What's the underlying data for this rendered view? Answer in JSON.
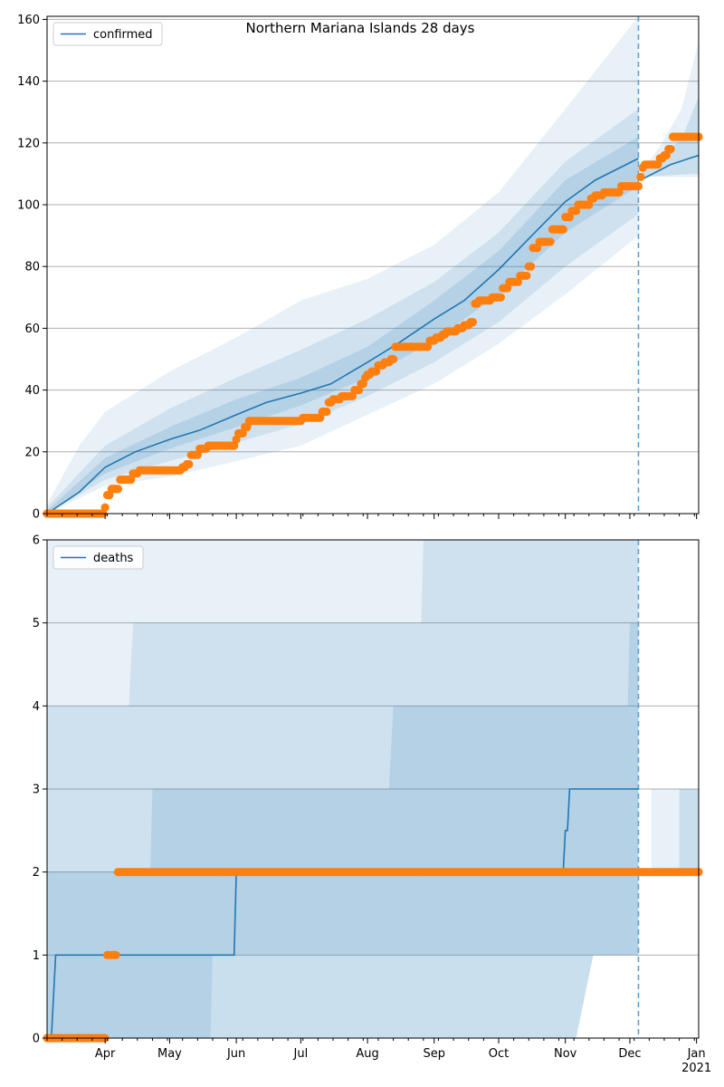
{
  "title": "Northern Mariana Islands 28 days",
  "colors": {
    "model_line": "#1f77b4",
    "observed": "#ff7f0e",
    "band": "#1f77b4",
    "grid": "#b0b0b0",
    "forecast_start": "#5b9fd4"
  },
  "x_axis": {
    "range": [
      "2020-03-05",
      "2021-01-02"
    ],
    "month_labels": [
      {
        "date": "2020-04-01",
        "label": "Apr"
      },
      {
        "date": "2020-05-01",
        "label": "May"
      },
      {
        "date": "2020-06-01",
        "label": "Jun"
      },
      {
        "date": "2020-07-01",
        "label": "Jul"
      },
      {
        "date": "2020-08-01",
        "label": "Aug"
      },
      {
        "date": "2020-09-01",
        "label": "Sep"
      },
      {
        "date": "2020-10-01",
        "label": "Oct"
      },
      {
        "date": "2020-11-01",
        "label": "Nov"
      },
      {
        "date": "2020-12-01",
        "label": "Dec"
      },
      {
        "date": "2021-01-01",
        "label": "Jan"
      }
    ],
    "year_label": "2021",
    "forecast_start": "2020-12-05"
  },
  "chart_data": [
    {
      "type": "line",
      "legend": "confirmed",
      "legend_position": "top-left",
      "grid": true,
      "ylim": [
        0,
        161
      ],
      "yticks": [
        "0",
        "20",
        "40",
        "60",
        "80",
        "100",
        "120",
        "140",
        "160"
      ],
      "model_line": [
        [
          "2020-03-05",
          0
        ],
        [
          "2020-03-20",
          7
        ],
        [
          "2020-04-01",
          15
        ],
        [
          "2020-04-15",
          20
        ],
        [
          "2020-05-01",
          24
        ],
        [
          "2020-05-15",
          27
        ],
        [
          "2020-06-01",
          32
        ],
        [
          "2020-06-15",
          36
        ],
        [
          "2020-07-01",
          39
        ],
        [
          "2020-07-15",
          42
        ],
        [
          "2020-08-01",
          49
        ],
        [
          "2020-08-15",
          55
        ],
        [
          "2020-09-01",
          63
        ],
        [
          "2020-09-15",
          69
        ],
        [
          "2020-10-01",
          79
        ],
        [
          "2020-10-15",
          89
        ],
        [
          "2020-11-01",
          101
        ],
        [
          "2020-11-15",
          108
        ],
        [
          "2020-12-05",
          115
        ],
        [
          "2020-12-06",
          108
        ],
        [
          "2020-12-20",
          113
        ],
        [
          "2021-01-02",
          116
        ]
      ],
      "bands": [
        {
          "level": "outer",
          "lower": [
            [
              "2020-03-05",
              0
            ],
            [
              "2020-04-01",
              9
            ],
            [
              "2020-05-01",
              12
            ],
            [
              "2020-06-01",
              17
            ],
            [
              "2020-07-01",
              22
            ],
            [
              "2020-08-01",
              32
            ],
            [
              "2020-09-01",
              42
            ],
            [
              "2020-10-01",
              55
            ],
            [
              "2020-11-01",
              71
            ],
            [
              "2020-12-05",
              90
            ]
          ],
          "upper": [
            [
              "2020-03-05",
              3
            ],
            [
              "2020-03-20",
              22
            ],
            [
              "2020-04-01",
              33
            ],
            [
              "2020-05-01",
              46
            ],
            [
              "2020-06-01",
              57
            ],
            [
              "2020-07-01",
              69
            ],
            [
              "2020-08-01",
              76
            ],
            [
              "2020-09-01",
              87
            ],
            [
              "2020-10-01",
              104
            ],
            [
              "2020-11-01",
              131
            ],
            [
              "2020-12-05",
              161
            ]
          ]
        },
        {
          "level": "middle",
          "lower": [
            [
              "2020-03-05",
              0
            ],
            [
              "2020-04-01",
              11
            ],
            [
              "2020-05-01",
              17
            ],
            [
              "2020-06-01",
              23
            ],
            [
              "2020-07-01",
              29
            ],
            [
              "2020-08-01",
              38
            ],
            [
              "2020-09-01",
              49
            ],
            [
              "2020-10-01",
              62
            ],
            [
              "2020-11-01",
              80
            ],
            [
              "2020-12-05",
              97
            ]
          ],
          "upper": [
            [
              "2020-03-05",
              2
            ],
            [
              "2020-04-01",
              22
            ],
            [
              "2020-05-01",
              34
            ],
            [
              "2020-06-01",
              44
            ],
            [
              "2020-07-01",
              53
            ],
            [
              "2020-08-01",
              63
            ],
            [
              "2020-09-01",
              75
            ],
            [
              "2020-10-01",
              91
            ],
            [
              "2020-11-01",
              114
            ],
            [
              "2020-12-05",
              131
            ]
          ]
        },
        {
          "level": "inner",
          "lower": [
            [
              "2020-03-05",
              0
            ],
            [
              "2020-04-01",
              13
            ],
            [
              "2020-05-01",
              21
            ],
            [
              "2020-06-01",
              28
            ],
            [
              "2020-07-01",
              35
            ],
            [
              "2020-08-01",
              44
            ],
            [
              "2020-09-01",
              56
            ],
            [
              "2020-10-01",
              71
            ],
            [
              "2020-11-01",
              91
            ],
            [
              "2020-12-05",
              106
            ]
          ],
          "upper": [
            [
              "2020-03-05",
              1
            ],
            [
              "2020-04-01",
              18
            ],
            [
              "2020-05-01",
              28
            ],
            [
              "2020-06-01",
              37
            ],
            [
              "2020-07-01",
              44
            ],
            [
              "2020-08-01",
              54
            ],
            [
              "2020-09-01",
              69
            ],
            [
              "2020-10-01",
              85
            ],
            [
              "2020-11-01",
              108
            ],
            [
              "2020-12-05",
              122
            ]
          ]
        },
        {
          "level": "forecast-outer",
          "lower": [
            [
              "2020-12-06",
              109
            ],
            [
              "2021-01-02",
              109
            ]
          ],
          "upper": [
            [
              "2020-12-06",
              110
            ],
            [
              "2020-12-15",
              119
            ],
            [
              "2020-12-25",
              131
            ],
            [
              "2021-01-02",
              153
            ]
          ]
        },
        {
          "level": "forecast-inner",
          "lower": [
            [
              "2020-12-06",
              109
            ],
            [
              "2021-01-02",
              110
            ]
          ],
          "upper": [
            [
              "2020-12-06",
              110
            ],
            [
              "2020-12-15",
              116
            ],
            [
              "2020-12-25",
              121
            ],
            [
              "2021-01-02",
              135
            ]
          ]
        }
      ],
      "observed": [
        [
          "2020-03-05",
          0
        ],
        [
          "2020-03-31",
          0
        ],
        [
          "2020-04-01",
          2
        ],
        [
          "2020-04-02",
          6
        ],
        [
          "2020-04-04",
          8
        ],
        [
          "2020-04-07",
          8
        ],
        [
          "2020-04-08",
          11
        ],
        [
          "2020-04-13",
          11
        ],
        [
          "2020-04-14",
          13
        ],
        [
          "2020-04-16",
          13
        ],
        [
          "2020-04-17",
          14
        ],
        [
          "2020-05-06",
          14
        ],
        [
          "2020-05-07",
          15
        ],
        [
          "2020-05-09",
          16
        ],
        [
          "2020-05-11",
          19
        ],
        [
          "2020-05-14",
          19
        ],
        [
          "2020-05-15",
          21
        ],
        [
          "2020-05-18",
          21
        ],
        [
          "2020-05-19",
          22
        ],
        [
          "2020-05-30",
          22
        ],
        [
          "2020-06-01",
          24
        ],
        [
          "2020-06-02",
          26
        ],
        [
          "2020-06-05",
          28
        ],
        [
          "2020-06-07",
          30
        ],
        [
          "2020-07-01",
          30
        ],
        [
          "2020-07-02",
          31
        ],
        [
          "2020-07-10",
          31
        ],
        [
          "2020-07-11",
          33
        ],
        [
          "2020-07-14",
          36
        ],
        [
          "2020-07-16",
          37
        ],
        [
          "2020-07-19",
          37
        ],
        [
          "2020-07-20",
          38
        ],
        [
          "2020-07-24",
          38
        ],
        [
          "2020-07-26",
          40
        ],
        [
          "2020-07-29",
          42
        ],
        [
          "2020-07-31",
          44
        ],
        [
          "2020-08-01",
          45
        ],
        [
          "2020-08-03",
          46
        ],
        [
          "2020-08-06",
          48
        ],
        [
          "2020-08-09",
          49
        ],
        [
          "2020-08-12",
          50
        ],
        [
          "2020-08-14",
          54
        ],
        [
          "2020-08-29",
          54
        ],
        [
          "2020-08-30",
          56
        ],
        [
          "2020-09-02",
          57
        ],
        [
          "2020-09-05",
          58
        ],
        [
          "2020-09-07",
          59
        ],
        [
          "2020-09-10",
          59
        ],
        [
          "2020-09-12",
          60
        ],
        [
          "2020-09-15",
          61
        ],
        [
          "2020-09-18",
          62
        ],
        [
          "2020-09-20",
          68
        ],
        [
          "2020-09-22",
          69
        ],
        [
          "2020-09-26",
          69
        ],
        [
          "2020-09-28",
          70
        ],
        [
          "2020-10-02",
          70
        ],
        [
          "2020-10-03",
          73
        ],
        [
          "2020-10-06",
          75
        ],
        [
          "2020-10-10",
          75
        ],
        [
          "2020-10-11",
          77
        ],
        [
          "2020-10-14",
          77
        ],
        [
          "2020-10-15",
          80
        ],
        [
          "2020-10-17",
          86
        ],
        [
          "2020-10-20",
          88
        ],
        [
          "2020-10-24",
          88
        ],
        [
          "2020-10-26",
          92
        ],
        [
          "2020-10-30",
          92
        ],
        [
          "2020-11-01",
          96
        ],
        [
          "2020-11-03",
          96
        ],
        [
          "2020-11-04",
          98
        ],
        [
          "2020-11-06",
          98
        ],
        [
          "2020-11-07",
          100
        ],
        [
          "2020-11-12",
          100
        ],
        [
          "2020-11-13",
          102
        ],
        [
          "2020-11-15",
          103
        ],
        [
          "2020-11-18",
          103
        ],
        [
          "2020-11-19",
          104
        ],
        [
          "2020-11-25",
          104
        ],
        [
          "2020-11-27",
          106
        ],
        [
          "2020-12-05",
          106
        ],
        [
          "2020-12-06",
          109
        ],
        [
          "2020-12-07",
          112
        ],
        [
          "2020-12-08",
          113
        ],
        [
          "2020-12-14",
          113
        ],
        [
          "2020-12-15",
          115
        ],
        [
          "2020-12-17",
          116
        ],
        [
          "2020-12-19",
          118
        ],
        [
          "2020-12-21",
          122
        ],
        [
          "2021-01-02",
          122
        ]
      ]
    },
    {
      "type": "line",
      "legend": "deaths",
      "legend_position": "top-left",
      "grid": true,
      "ylim": [
        0,
        6
      ],
      "yticks": [
        "0",
        "1",
        "2",
        "3",
        "4",
        "5",
        "6"
      ],
      "model_line": [
        [
          "2020-03-05",
          0
        ],
        [
          "2020-03-07",
          0
        ],
        [
          "2020-03-09",
          1
        ],
        [
          "2020-05-31",
          1
        ],
        [
          "2020-06-01",
          2
        ],
        [
          "2020-10-31",
          2
        ],
        [
          "2020-11-01",
          2.5
        ],
        [
          "2020-11-02",
          2.5
        ],
        [
          "2020-11-03",
          3
        ],
        [
          "2020-12-05",
          3
        ],
        [
          "2020-12-06",
          2
        ],
        [
          "2021-01-02",
          2
        ]
      ],
      "bands": [
        {
          "level": "outer",
          "lower": [
            [
              "2020-03-05",
              0
            ],
            [
              "2020-11-06",
              0
            ],
            [
              "2020-11-14",
              1
            ],
            [
              "2020-12-05",
              1
            ]
          ],
          "upper": [
            [
              "2020-03-05",
              6
            ],
            [
              "2020-12-05",
              6
            ]
          ]
        },
        {
          "level": "middle",
          "lower": [
            [
              "2020-03-05",
              0
            ],
            [
              "2020-05-20",
              0
            ],
            [
              "2020-05-21",
              1
            ],
            [
              "2020-12-05",
              1
            ]
          ],
          "upper": [
            [
              "2020-03-05",
              4
            ],
            [
              "2020-04-12",
              4
            ],
            [
              "2020-04-14",
              5
            ],
            [
              "2020-08-26",
              5
            ],
            [
              "2020-08-27",
              6
            ],
            [
              "2020-12-05",
              6
            ]
          ]
        },
        {
          "level": "inner",
          "lower": [
            [
              "2020-03-05",
              0
            ],
            [
              "2020-11-06",
              0
            ],
            [
              "2020-11-14",
              1
            ],
            [
              "2020-12-05",
              1
            ]
          ],
          "upper": [
            [
              "2020-03-05",
              2
            ],
            [
              "2020-04-22",
              2
            ],
            [
              "2020-04-23",
              3
            ],
            [
              "2020-08-11",
              3
            ],
            [
              "2020-08-13",
              4
            ],
            [
              "2020-11-30",
              4
            ],
            [
              "2020-12-01",
              5
            ],
            [
              "2020-12-05",
              5
            ]
          ]
        },
        {
          "level": "forecast-outer",
          "lower": [
            [
              "2020-12-11",
              2
            ],
            [
              "2021-01-02",
              2
            ]
          ],
          "upper": [
            [
              "2020-12-11",
              3
            ],
            [
              "2021-01-02",
              3
            ]
          ]
        },
        {
          "level": "forecast-inner",
          "lower": [
            [
              "2020-12-24",
              2
            ],
            [
              "2021-01-02",
              2
            ]
          ],
          "upper": [
            [
              "2020-12-24",
              3
            ],
            [
              "2021-01-02",
              3
            ]
          ]
        }
      ],
      "observed": [
        [
          "2020-03-05",
          0
        ],
        [
          "2020-04-01",
          0
        ],
        [
          "2020-04-02",
          1
        ],
        [
          "2020-04-06",
          1
        ],
        [
          "2020-04-07",
          2
        ],
        [
          "2021-01-02",
          2
        ]
      ]
    }
  ]
}
